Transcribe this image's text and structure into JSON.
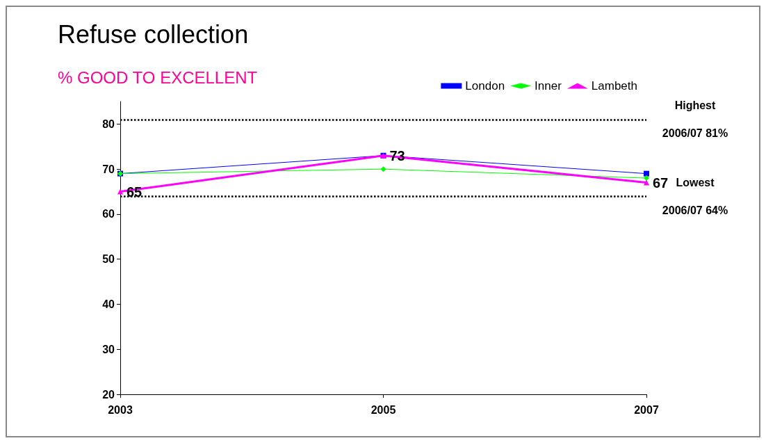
{
  "chart_data": {
    "type": "line",
    "title": "Refuse collection",
    "subtitle": "% GOOD TO EXCELLENT",
    "categories": [
      "2003",
      "2005",
      "2007"
    ],
    "series": [
      {
        "name": "London",
        "color": "#0000ff",
        "values": [
          69,
          73,
          69
        ],
        "marker": "square"
      },
      {
        "name": "Inner",
        "color": "#00ff00",
        "values": [
          69,
          70,
          68
        ],
        "marker": "diamond"
      },
      {
        "name": "Lambeth",
        "color": "#ff00ff",
        "values": [
          65,
          73,
          67
        ],
        "marker": "triangle",
        "value_labels": [
          "65",
          "73",
          "67"
        ]
      }
    ],
    "ylim": [
      20,
      85
    ],
    "yticks": [
      20,
      30,
      40,
      50,
      60,
      70,
      80
    ],
    "grid": false,
    "legend": "top right",
    "ref_lines": [
      {
        "axis": "y",
        "value": 81,
        "label": "Highest\n2006/07 81%",
        "color": "#000000",
        "line_style": "dotted"
      },
      {
        "axis": "y",
        "value": 64,
        "label": "Lowest\n2006/07 64%",
        "color": "#000000",
        "line_style": "dotted"
      }
    ]
  }
}
